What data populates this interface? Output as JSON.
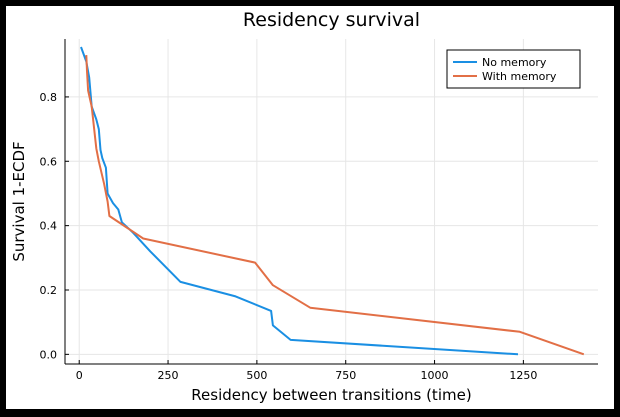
{
  "chart_data": {
    "type": "line",
    "title": "Residency survival",
    "xlabel": "Residency between transitions (time)",
    "ylabel": "Survival 1-ECDF",
    "xlim": [
      -40,
      1460
    ],
    "ylim": [
      -0.03,
      0.98
    ],
    "xticks": [
      0,
      250,
      500,
      750,
      1000,
      1250
    ],
    "yticks": [
      0.0,
      0.2,
      0.4,
      0.6,
      0.8
    ],
    "ytick_labels": [
      "0.0",
      "0.2",
      "0.4",
      "0.6",
      "0.8"
    ],
    "grid": true,
    "legend_position": "top-right",
    "series": [
      {
        "name": "No memory",
        "color": "#1a8fe3",
        "x": [
          5,
          20,
          28,
          35,
          48,
          55,
          60,
          65,
          75,
          80,
          85,
          95,
          110,
          120,
          150,
          200,
          285,
          440,
          540,
          545,
          595,
          1235
        ],
        "y": [
          0.955,
          0.91,
          0.86,
          0.77,
          0.73,
          0.7,
          0.635,
          0.61,
          0.58,
          0.5,
          0.49,
          0.47,
          0.45,
          0.41,
          0.38,
          0.32,
          0.225,
          0.18,
          0.135,
          0.09,
          0.045,
          0.0
        ]
      },
      {
        "name": "With memory",
        "color": "#e26f46",
        "x": [
          20,
          22,
          25,
          35,
          48,
          55,
          70,
          80,
          85,
          180,
          495,
          545,
          650,
          1240,
          1420
        ],
        "y": [
          0.93,
          0.88,
          0.82,
          0.77,
          0.64,
          0.6,
          0.53,
          0.475,
          0.43,
          0.36,
          0.285,
          0.215,
          0.145,
          0.07,
          0.0
        ]
      }
    ]
  }
}
